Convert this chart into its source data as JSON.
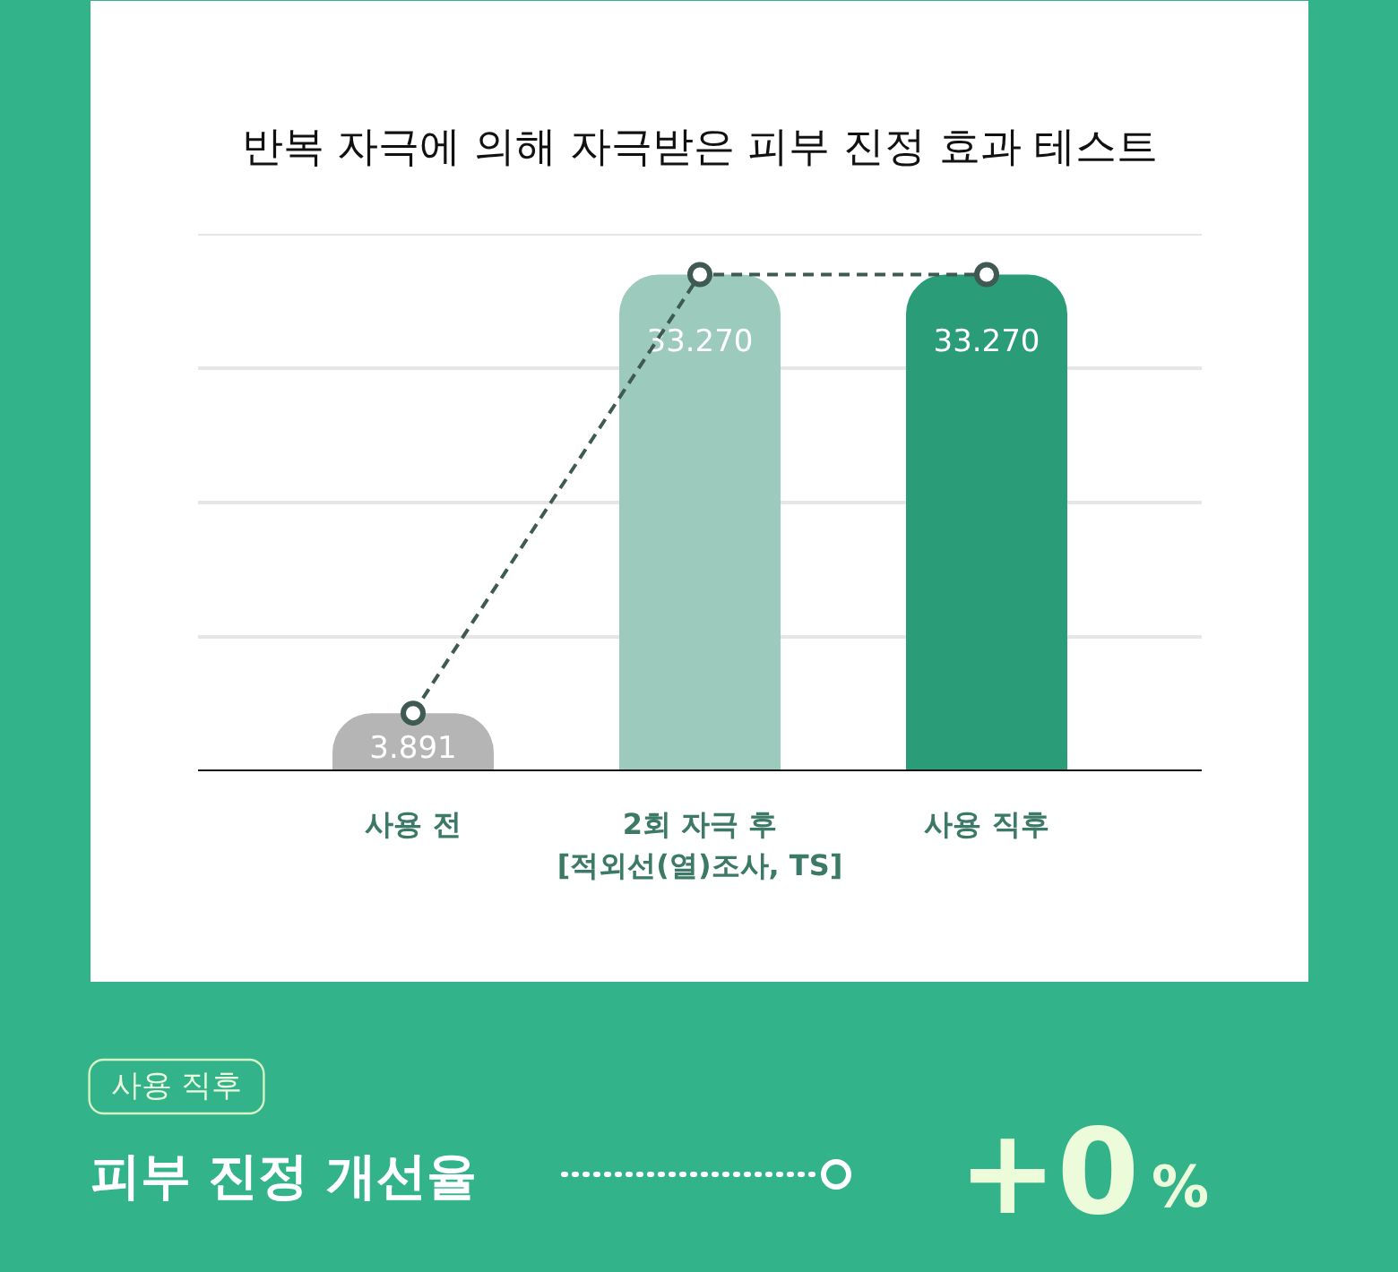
{
  "chart_data": {
    "type": "bar",
    "title": "반복 자극에 의해 자극받은 피부 진정 효과 테스트",
    "categories": [
      "사용 전",
      "2회 자극 후\n[적외선(열)조사, TS]",
      "사용 직후"
    ],
    "series": [
      {
        "colors": [
          "#b5b5b5",
          "#9ccabd",
          "#2a9c77"
        ],
        "values": [
          3.891,
          33.27,
          33.27
        ],
        "value_labels": [
          "3.891",
          "33.270",
          "33.270"
        ]
      },
      {
        "type": "line",
        "color": "#3f5a53",
        "values": [
          3.891,
          33.27,
          33.27
        ]
      }
    ],
    "marker": "circle",
    "line_style": "dashed",
    "ylim": [
      0,
      36
    ],
    "yticks": [
      9,
      18,
      27,
      36
    ],
    "grid": "y",
    "tick_labels": "x",
    "annotations": [
      "사용 직후",
      "피부 진정 개선율",
      "+0",
      "%"
    ]
  }
}
